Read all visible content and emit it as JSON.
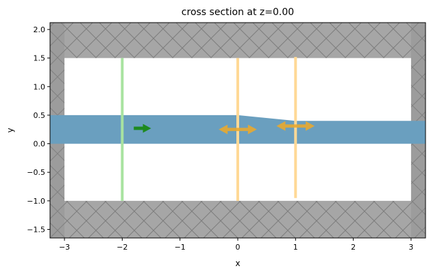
{
  "chart_data": {
    "type": "cross-section",
    "title": "cross section at z=0.00",
    "xlabel": "x",
    "ylabel": "y",
    "xlim": [
      -3.25,
      3.25
    ],
    "ylim": [
      -1.65,
      2.12
    ],
    "xticks": [
      -3,
      -2,
      -1,
      0,
      1,
      2,
      3
    ],
    "xtick_labels": [
      "−3",
      "−2",
      "−1",
      "0",
      "1",
      "2",
      "3"
    ],
    "yticks": [
      -1.5,
      -1.0,
      -0.5,
      0.0,
      0.5,
      1.0,
      1.5,
      2.0
    ],
    "ytick_labels": [
      "−1.5",
      "−1.0",
      "−0.5",
      "0.0",
      "0.5",
      "1.0",
      "1.5",
      "2.0"
    ],
    "grid": false,
    "colors": {
      "pml": "#a6a6a6",
      "pml_edge": "#8a8a8a",
      "pml_hatch": "#7d7d7d",
      "waveguide": "#6a9fbf",
      "source_line": "#a8e3a0",
      "source_arrow": "#1e8a20",
      "monitor_line": "#ffd996",
      "monitor_arrow": "#e8a830"
    },
    "pml_regions": [
      {
        "name": "top",
        "x0": -3.25,
        "x1": 3.25,
        "y0": 1.5,
        "y1": 2.12
      },
      {
        "name": "bottom",
        "x0": -3.25,
        "x1": 3.25,
        "y0": -1.65,
        "y1": -1.0
      },
      {
        "name": "left",
        "x0": -3.25,
        "x1": -3.0,
        "y0": -1.65,
        "y1": 2.12
      },
      {
        "name": "right",
        "x0": 3.0,
        "x1": 3.25,
        "y0": -1.65,
        "y1": 2.12
      }
    ],
    "waveguide": {
      "polygon": [
        [
          -3.25,
          0.0
        ],
        [
          3.25,
          0.0
        ],
        [
          3.25,
          0.4
        ],
        [
          1.0,
          0.4
        ],
        [
          0.0,
          0.5
        ],
        [
          -3.25,
          0.5
        ]
      ]
    },
    "source": {
      "x": -2.0,
      "y0": -1.0,
      "y1": 1.5,
      "arrow": {
        "x0": -1.8,
        "x1": -1.5,
        "y": 0.27,
        "direction": "+x"
      }
    },
    "monitors": [
      {
        "x": 0.0,
        "y0": -1.0,
        "y1": 1.5,
        "arrow": {
          "xc": 0.0,
          "half_len": 0.33,
          "y": 0.25
        }
      },
      {
        "x": 1.0,
        "y0": -0.95,
        "y1": 1.52,
        "arrow": {
          "xc": 0.0,
          "half_len": 0.33,
          "y": 0.31,
          "x": 1.0
        }
      }
    ]
  }
}
